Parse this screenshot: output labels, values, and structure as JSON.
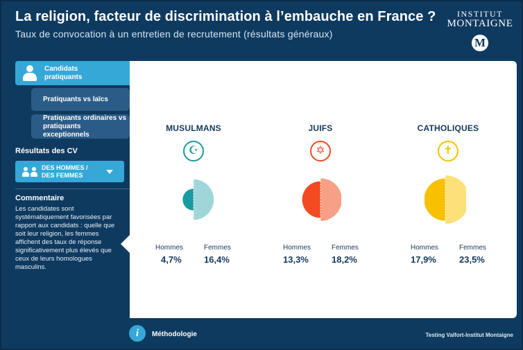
{
  "header": {
    "title": "La religion, facteur de discrimination à l’embauche en France ?",
    "subtitle": "Taux de convocation à un entretien de recrutement (résultats généraux)"
  },
  "brand": {
    "line1": "INSTITUT",
    "line2": "MONTAIGNE",
    "badge": "M"
  },
  "nav": {
    "active_label": "Candidats pratiquants",
    "items": [
      {
        "label": "Pratiquants vs laïcs"
      },
      {
        "label": "Pratiquants ordinaires vs pratiquants exceptionnels"
      }
    ]
  },
  "cv": {
    "title": "Résultats des CV",
    "select_value": "DES HOMMES / DES FEMMES"
  },
  "comment": {
    "title": "Commentaire",
    "text": "Les candidates sont systématiquement favorisées par rapport aux candidats : quelle que soit leur religion, les femmes affichent des taux de réponse significativement plus élevés que ceux de leurs homologues masculins."
  },
  "chart_data": {
    "type": "pie",
    "series_labels": {
      "men": "Hommes",
      "women": "Femmes"
    },
    "groups": [
      {
        "name": "MUSULMANS",
        "symbol": "☪",
        "men_label": "4,7%",
        "women_label": "16,4%",
        "men": 4.7,
        "women": 16.4,
        "color_men": "#1a9aa1",
        "color_women": "#9fd6d9"
      },
      {
        "name": "JUIFS",
        "symbol": "✡",
        "men_label": "13,3%",
        "women_label": "18,2%",
        "men": 13.3,
        "women": 18.2,
        "color_men": "#f34a22",
        "color_women": "#f7a085"
      },
      {
        "name": "CATHOLIQUES",
        "symbol": "✝",
        "men_label": "17,9%",
        "women_label": "23,5%",
        "men": 17.9,
        "women": 23.5,
        "color_men": "#f8c100",
        "color_women": "#fce17a"
      }
    ]
  },
  "footer": {
    "info_icon": "i",
    "methodology_label": "Méthodologie",
    "source": "Testing Valfort-Institut Montaigne"
  }
}
